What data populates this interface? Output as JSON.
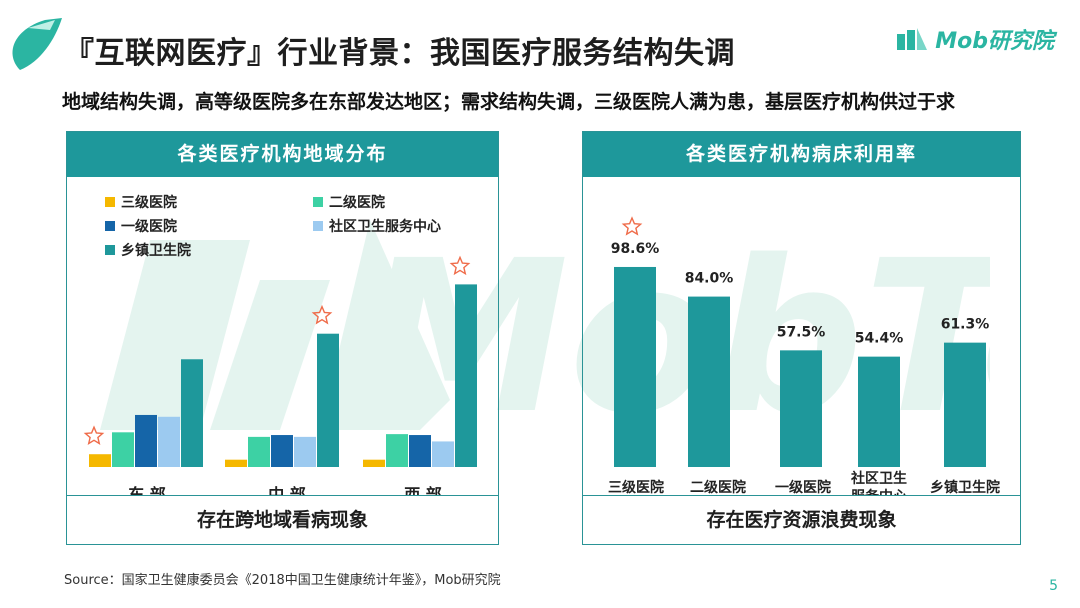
{
  "header": {
    "title": "『互联网医疗』行业背景：我国医疗服务结构失调",
    "brand": "Mob研究院",
    "subtitle": "地域结构失调，高等级医院多在东部发达地区；需求结构失调，三级医院人满为患，基层医疗机构供过于求"
  },
  "colors": {
    "teal": "#1e989b",
    "yellow": "#f5b800",
    "mint": "#3dd1a4",
    "navy": "#1565a8",
    "lightblue": "#9ccaf0",
    "star": "#ef6c4a"
  },
  "chart_data": [
    {
      "type": "bar",
      "title": "各类医疗机构地域分布",
      "footer": "存在跨地域看病现象",
      "categories": [
        "东 部",
        "中 部",
        "西 部"
      ],
      "series": [
        {
          "name": "三级医院",
          "values": [
            14,
            8,
            8
          ]
        },
        {
          "name": "二级医院",
          "values": [
            38,
            33,
            36
          ]
        },
        {
          "name": "一级医院",
          "values": [
            57,
            35,
            35
          ]
        },
        {
          "name": "社区卫生服务中心",
          "values": [
            55,
            33,
            28
          ]
        },
        {
          "name": "乡镇卫生院",
          "values": [
            118,
            146,
            200
          ]
        }
      ],
      "stars": [
        {
          "category": "东 部",
          "series": "三级医院"
        },
        {
          "category": "中 部",
          "series": "乡镇卫生院"
        },
        {
          "category": "西 部",
          "series": "乡镇卫生院"
        }
      ],
      "ylim": [
        0,
        230
      ],
      "xlabel": "",
      "ylabel": "",
      "legend_position": "top-left"
    },
    {
      "type": "bar",
      "title": "各类医疗机构病床利用率",
      "footer": "存在医疗资源浪费现象",
      "categories": [
        "三级医院",
        "二级医院",
        "一级医院",
        "社区卫生\n服务中心",
        "乡镇卫生院"
      ],
      "values": [
        98.6,
        84.0,
        57.5,
        54.4,
        61.3
      ],
      "value_labels": [
        "98.6%",
        "84.0%",
        "57.5%",
        "54.4%",
        "61.3%"
      ],
      "stars": [
        "三级医院"
      ],
      "ylim": [
        0,
        115
      ],
      "xlabel": "",
      "ylabel": ""
    }
  ],
  "footer": {
    "source": "Source：国家卫生健康委员会《2018中国卫生健康统计年鉴》，Mob研究院",
    "page_number": "5"
  }
}
